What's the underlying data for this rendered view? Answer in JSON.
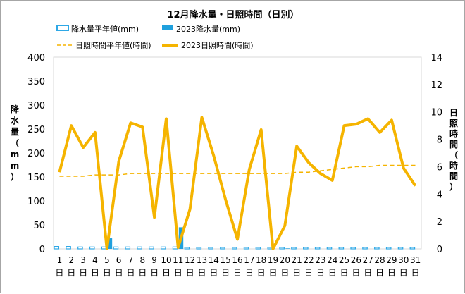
{
  "chart_data": {
    "type": "bar+line",
    "title": "12月降水量・日照時間（日別）",
    "y_left_label": [
      "降",
      "水",
      "量",
      "（",
      "m",
      "m",
      "）"
    ],
    "y_right_label": [
      "日",
      "照",
      "時",
      "間",
      "（",
      "時",
      "間",
      "）"
    ],
    "y_left_lim": [
      0,
      400
    ],
    "y_left_ticks": [
      0,
      50,
      100,
      150,
      200,
      250,
      300,
      350,
      400
    ],
    "y_right_lim": [
      0,
      14
    ],
    "y_right_ticks": [
      0,
      2,
      4,
      6,
      8,
      10,
      12,
      14
    ],
    "categories": [
      "1",
      "2",
      "3",
      "4",
      "5",
      "6",
      "7",
      "8",
      "9",
      "10",
      "11",
      "12",
      "13",
      "14",
      "15",
      "16",
      "17",
      "18",
      "19",
      "20",
      "21",
      "22",
      "23",
      "24",
      "25",
      "26",
      "27",
      "28",
      "29",
      "30",
      "31"
    ],
    "category_suffix": "日",
    "legend": [
      {
        "name": "降水量平年値(mm)",
        "kind": "bar-outline",
        "color": "#2ea8e6"
      },
      {
        "name": "2023降水量(mm)",
        "kind": "bar",
        "color": "#1fa0dd"
      },
      {
        "name": "日照時間平年値(時間)",
        "kind": "dashed-line",
        "color": "#f5b400"
      },
      {
        "name": "2023日照時間(時間)",
        "kind": "line",
        "color": "#f5b400"
      }
    ],
    "series": [
      {
        "name": "降水量平年値(mm)",
        "axis": "left",
        "type": "bar",
        "values": [
          5,
          5,
          4,
          4,
          4,
          4,
          4,
          4,
          4,
          4,
          4,
          3,
          3,
          3,
          3,
          3,
          3,
          3,
          3,
          3,
          3,
          3,
          3,
          3,
          3,
          3,
          3,
          3,
          3,
          3,
          3
        ]
      },
      {
        "name": "2023降水量(mm)",
        "axis": "left",
        "type": "bar",
        "values": [
          0,
          0,
          0,
          0,
          22,
          0,
          0,
          0,
          0,
          0,
          45,
          0,
          0,
          0,
          0,
          0,
          0,
          0,
          0,
          1,
          0,
          0,
          0,
          0,
          0,
          0,
          0,
          0,
          0,
          0,
          0
        ]
      },
      {
        "name": "日照時間平年値(時間)",
        "axis": "right",
        "type": "line",
        "dashed": true,
        "values": [
          5.3,
          5.3,
          5.3,
          5.4,
          5.4,
          5.4,
          5.5,
          5.5,
          5.5,
          5.5,
          5.5,
          5.5,
          5.5,
          5.5,
          5.5,
          5.5,
          5.5,
          5.5,
          5.5,
          5.5,
          5.6,
          5.6,
          5.7,
          5.8,
          5.9,
          6.0,
          6.0,
          6.1,
          6.1,
          6.1,
          6.1
        ]
      },
      {
        "name": "2023日照時間(時間)",
        "axis": "right",
        "type": "line",
        "values": [
          5.6,
          9.0,
          7.4,
          8.5,
          0.0,
          6.4,
          9.2,
          8.9,
          2.3,
          9.5,
          0.1,
          2.9,
          9.6,
          6.8,
          3.6,
          0.7,
          5.8,
          8.7,
          0.0,
          1.7,
          7.5,
          6.3,
          5.5,
          5.0,
          9.0,
          9.1,
          9.5,
          8.5,
          9.4,
          5.9,
          4.6
        ]
      }
    ]
  }
}
